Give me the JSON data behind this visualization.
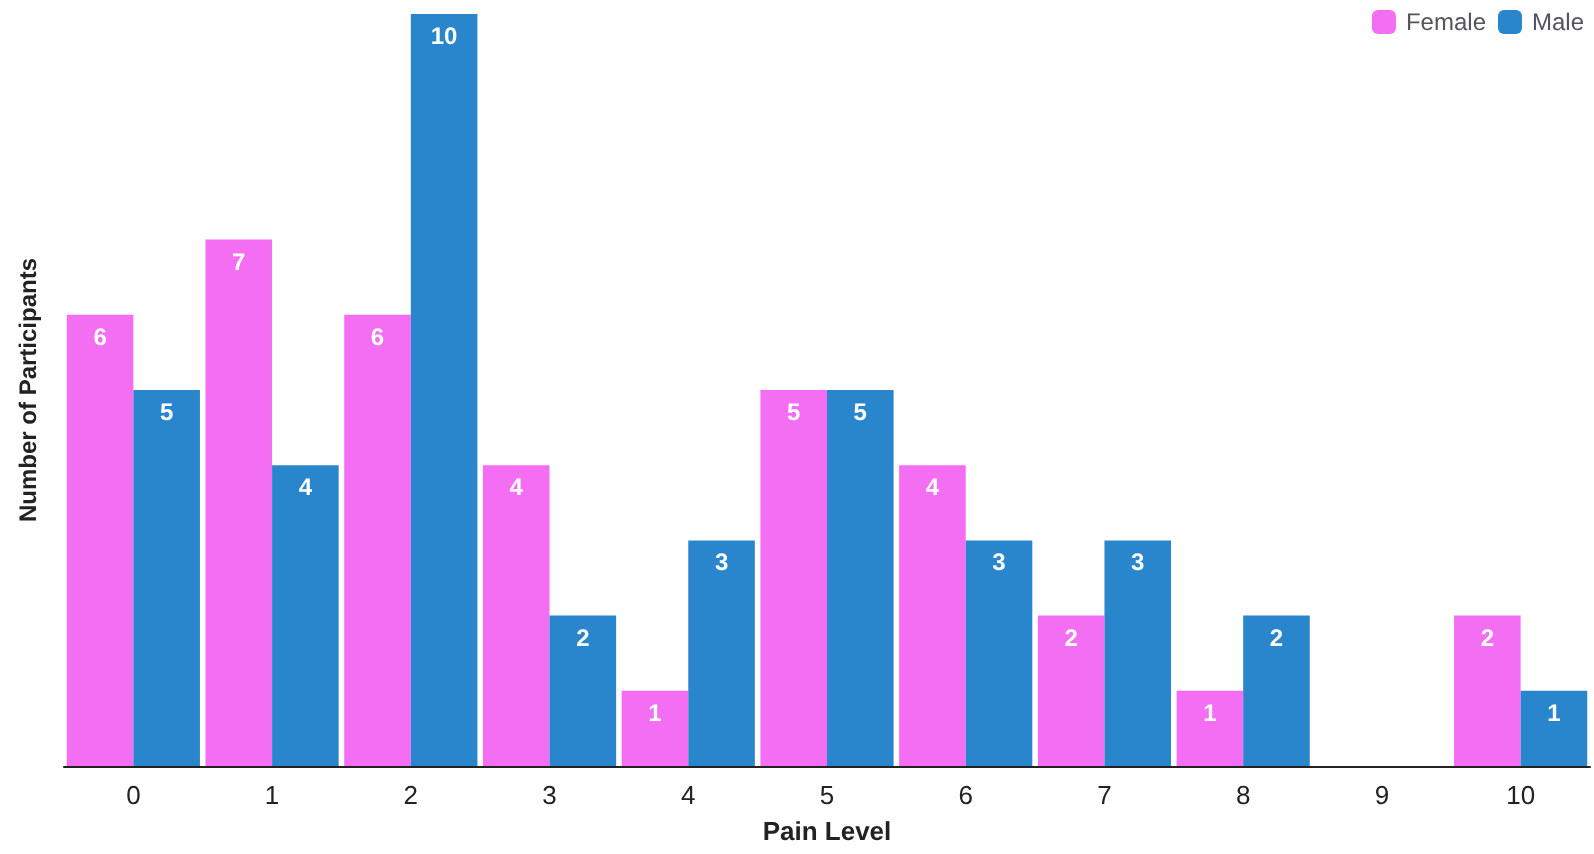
{
  "chart_data": {
    "type": "bar",
    "xlabel": "Pain Level",
    "ylabel": "Number of Participants",
    "categories": [
      "0",
      "1",
      "2",
      "3",
      "4",
      "5",
      "6",
      "7",
      "8",
      "9",
      "10"
    ],
    "series": [
      {
        "name": "Female",
        "color": "#f46ef4",
        "values": [
          6,
          7,
          6,
          4,
          1,
          5,
          4,
          2,
          1,
          null,
          2
        ]
      },
      {
        "name": "Male",
        "color": "#2a86cc",
        "values": [
          5,
          4,
          10,
          2,
          3,
          5,
          3,
          3,
          2,
          null,
          1
        ]
      }
    ],
    "ylim": [
      0,
      10
    ],
    "tick_labels": "x",
    "data_labels": true,
    "legend": "top right",
    "grid": false
  }
}
